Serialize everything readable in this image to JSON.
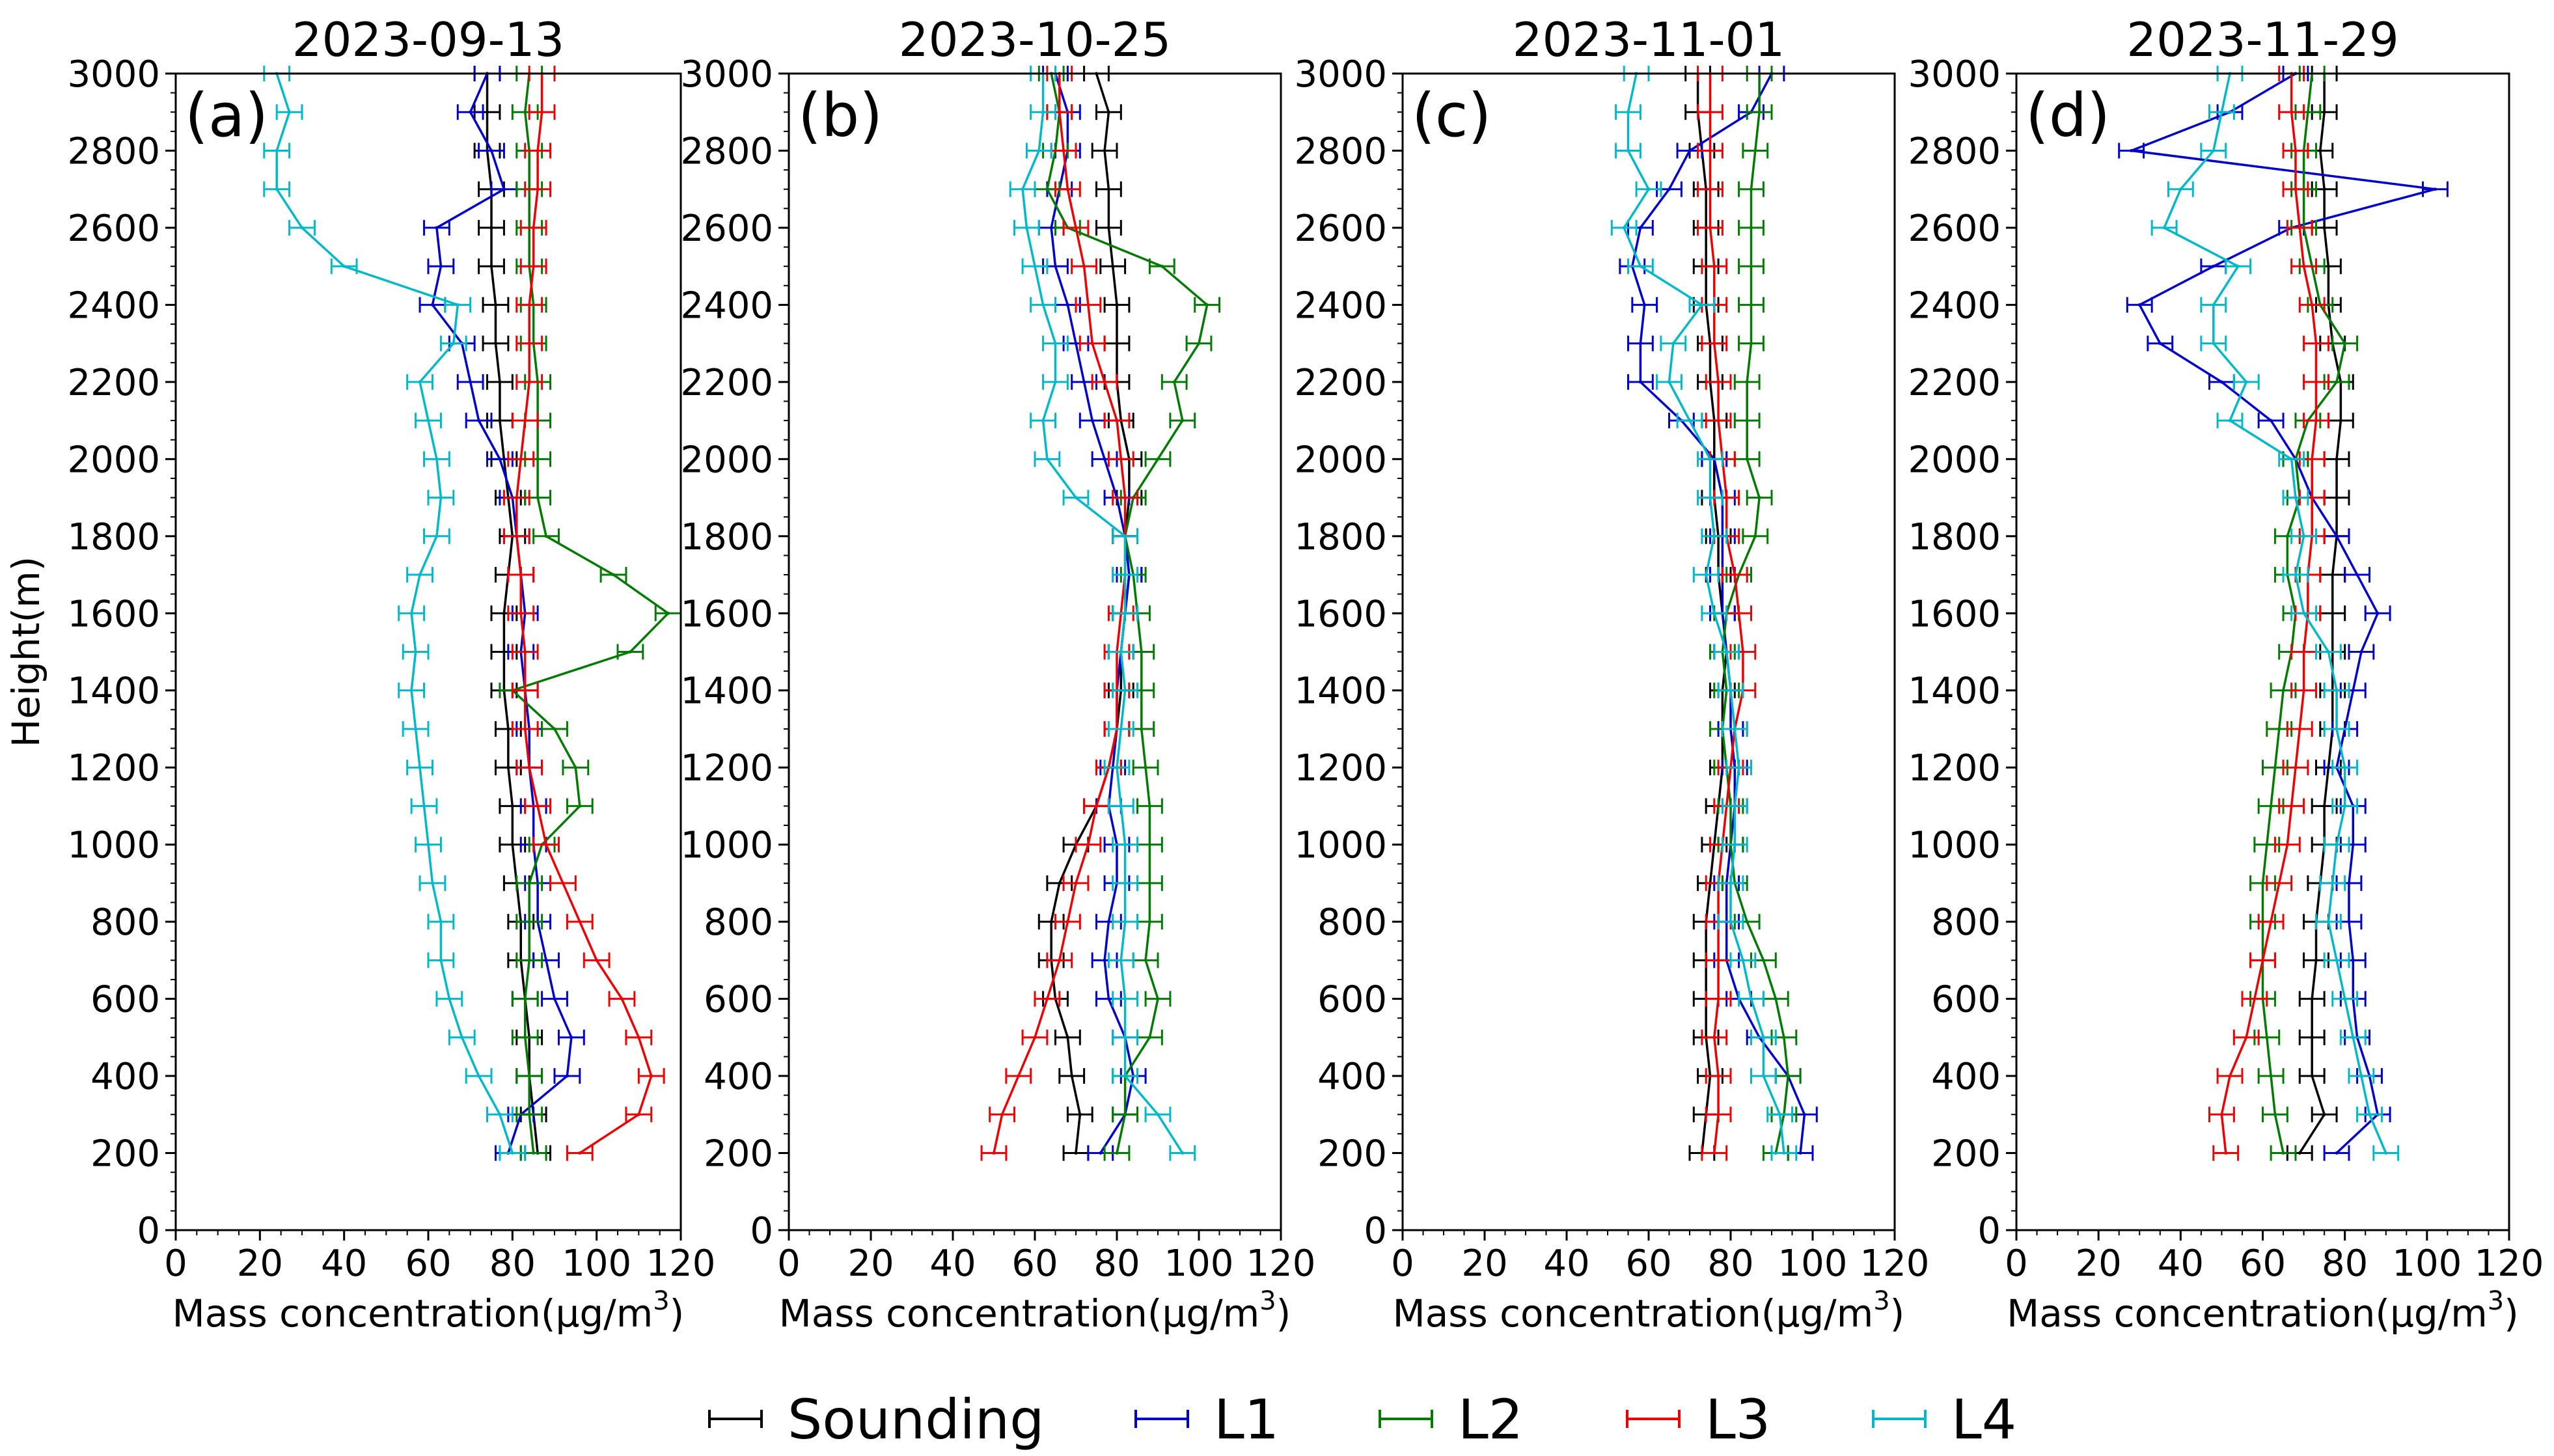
{
  "colors": {
    "Sounding": "#000000",
    "L1": "#0000cc",
    "L2": "#007a00",
    "L3": "#ee0000",
    "L4": "#00b8c8"
  },
  "legend": [
    "Sounding",
    "L1",
    "L2",
    "L3",
    "L4"
  ],
  "chart_data": [
    {
      "type": "line",
      "title": "2023-09-13",
      "panel": "(a)",
      "xlabel": "Mass concentration(μg/m³)",
      "ylabel": "Height(m)",
      "xlim": [
        0,
        120
      ],
      "ylim": [
        0,
        3000
      ],
      "xticks": [
        0,
        20,
        40,
        60,
        80,
        100,
        120
      ],
      "yticks": [
        0,
        200,
        400,
        600,
        800,
        1000,
        1200,
        1400,
        1600,
        1800,
        2000,
        2200,
        2400,
        2600,
        2800,
        3000
      ],
      "heights": [
        200,
        300,
        400,
        500,
        600,
        700,
        800,
        900,
        1000,
        1100,
        1200,
        1300,
        1400,
        1500,
        1600,
        1700,
        1800,
        1900,
        2000,
        2100,
        2200,
        2300,
        2400,
        2500,
        2600,
        2700,
        2800,
        2900,
        3000
      ],
      "series": [
        {
          "name": "Sounding",
          "values": [
            86,
            85,
            84,
            84,
            83,
            82,
            82,
            81,
            80,
            80,
            79,
            79,
            78,
            78,
            78,
            79,
            80,
            79,
            78,
            77,
            77,
            76,
            76,
            75,
            75,
            75,
            74,
            74,
            74
          ]
        },
        {
          "name": "L1",
          "values": [
            79,
            82,
            93,
            94,
            90,
            88,
            86,
            86,
            85,
            85,
            84,
            84,
            83,
            82,
            83,
            82,
            81,
            80,
            77,
            72,
            70,
            68,
            61,
            63,
            62,
            78,
            75,
            70,
            74
          ]
        },
        {
          "name": "L2",
          "values": [
            85,
            84,
            84,
            83,
            83,
            84,
            84,
            84,
            87,
            96,
            95,
            90,
            80,
            108,
            117,
            104,
            88,
            86,
            86,
            86,
            86,
            85,
            85,
            84,
            84,
            84,
            84,
            83,
            84
          ]
        },
        {
          "name": "L3",
          "values": [
            96,
            110,
            113,
            110,
            106,
            100,
            96,
            92,
            88,
            86,
            84,
            83,
            83,
            83,
            82,
            82,
            81,
            81,
            82,
            83,
            84,
            84,
            84,
            85,
            85,
            86,
            86,
            87,
            87
          ]
        },
        {
          "name": "L4",
          "values": [
            80,
            77,
            72,
            68,
            65,
            63,
            63,
            61,
            60,
            59,
            58,
            57,
            56,
            57,
            56,
            58,
            62,
            63,
            62,
            60,
            58,
            66,
            67,
            40,
            30,
            24,
            24,
            27,
            24
          ]
        }
      ]
    },
    {
      "type": "line",
      "title": "2023-10-25",
      "panel": "(b)",
      "xlabel": "Mass concentration(μg/m³)",
      "xlim": [
        0,
        120
      ],
      "ylim": [
        0,
        3000
      ],
      "xticks": [
        0,
        20,
        40,
        60,
        80,
        100,
        120
      ],
      "yticks": [
        0,
        200,
        400,
        600,
        800,
        1000,
        1200,
        1400,
        1600,
        1800,
        2000,
        2200,
        2400,
        2600,
        2800,
        3000
      ],
      "heights": [
        200,
        300,
        400,
        500,
        600,
        700,
        800,
        900,
        1000,
        1100,
        1200,
        1300,
        1400,
        1500,
        1600,
        1700,
        1800,
        1900,
        2000,
        2100,
        2200,
        2300,
        2400,
        2500,
        2600,
        2700,
        2800,
        2900,
        3000
      ],
      "series": [
        {
          "name": "Sounding",
          "values": [
            70,
            71,
            69,
            68,
            65,
            64,
            64,
            66,
            70,
            75,
            78,
            80,
            81,
            81,
            82,
            83,
            82,
            83,
            83,
            81,
            80,
            80,
            80,
            79,
            78,
            78,
            77,
            78,
            75
          ]
        },
        {
          "name": "L1",
          "values": [
            76,
            82,
            84,
            82,
            78,
            77,
            78,
            80,
            80,
            78,
            79,
            80,
            80,
            81,
            82,
            83,
            82,
            80,
            77,
            74,
            72,
            70,
            68,
            65,
            64,
            66,
            68,
            68,
            65
          ]
        },
        {
          "name": "L2",
          "values": [
            80,
            82,
            82,
            88,
            90,
            87,
            88,
            88,
            88,
            88,
            87,
            86,
            86,
            86,
            85,
            84,
            82,
            84,
            90,
            96,
            94,
            100,
            102,
            91,
            68,
            63,
            65,
            66,
            64
          ]
        },
        {
          "name": "L3",
          "values": [
            50,
            52,
            56,
            60,
            63,
            66,
            68,
            70,
            73,
            75,
            78,
            80,
            80,
            80,
            81,
            82,
            82,
            82,
            81,
            80,
            77,
            74,
            73,
            72,
            70,
            68,
            67,
            66,
            66
          ]
        },
        {
          "name": "L4",
          "values": [
            96,
            90,
            82,
            82,
            82,
            81,
            82,
            82,
            82,
            81,
            80,
            81,
            82,
            81,
            82,
            82,
            82,
            70,
            63,
            62,
            65,
            65,
            62,
            60,
            58,
            57,
            61,
            62,
            62
          ]
        }
      ]
    },
    {
      "type": "line",
      "title": "2023-11-01",
      "panel": "(c)",
      "xlabel": "Mass concentration(μg/m³)",
      "xlim": [
        0,
        120
      ],
      "ylim": [
        0,
        3000
      ],
      "xticks": [
        0,
        20,
        40,
        60,
        80,
        100,
        120
      ],
      "yticks": [
        0,
        200,
        400,
        600,
        800,
        1000,
        1200,
        1400,
        1600,
        1800,
        2000,
        2200,
        2400,
        2600,
        2800,
        3000
      ],
      "heights": [
        200,
        300,
        400,
        500,
        600,
        700,
        800,
        900,
        1000,
        1100,
        1200,
        1300,
        1400,
        1500,
        1600,
        1700,
        1800,
        1900,
        2000,
        2100,
        2200,
        2300,
        2400,
        2500,
        2600,
        2700,
        2800,
        2900,
        3000
      ],
      "series": [
        {
          "name": "Sounding",
          "values": [
            73,
            74,
            75,
            74,
            74,
            74,
            74,
            75,
            76,
            77,
            78,
            78,
            78,
            79,
            78,
            77,
            77,
            76,
            76,
            76,
            75,
            75,
            74,
            74,
            74,
            74,
            73,
            72,
            72
          ]
        },
        {
          "name": "L1",
          "values": [
            97,
            98,
            94,
            87,
            82,
            79,
            79,
            79,
            80,
            81,
            81,
            80,
            80,
            79,
            78,
            78,
            78,
            78,
            76,
            68,
            58,
            58,
            59,
            56,
            58,
            65,
            70,
            85,
            90
          ]
        },
        {
          "name": "L2",
          "values": [
            91,
            93,
            94,
            93,
            91,
            88,
            84,
            81,
            80,
            80,
            79,
            78,
            79,
            78,
            79,
            82,
            86,
            87,
            84,
            84,
            84,
            85,
            85,
            85,
            85,
            85,
            86,
            87,
            87
          ]
        },
        {
          "name": "L3",
          "values": [
            76,
            77,
            77,
            76,
            77,
            77,
            77,
            77,
            78,
            79,
            80,
            81,
            83,
            83,
            82,
            81,
            79,
            79,
            78,
            77,
            77,
            76,
            76,
            76,
            75,
            75,
            75,
            75,
            75
          ]
        },
        {
          "name": "L4",
          "values": [
            93,
            92,
            88,
            88,
            85,
            83,
            80,
            80,
            81,
            81,
            82,
            81,
            80,
            79,
            76,
            74,
            76,
            75,
            75,
            70,
            65,
            66,
            73,
            58,
            54,
            60,
            55,
            55,
            57
          ]
        }
      ]
    },
    {
      "type": "line",
      "title": "2023-11-29",
      "panel": "(d)",
      "xlabel": "Mass concentration(μg/m³)",
      "xlim": [
        0,
        120
      ],
      "ylim": [
        0,
        3000
      ],
      "xticks": [
        0,
        20,
        40,
        60,
        80,
        100,
        120
      ],
      "yticks": [
        0,
        200,
        400,
        600,
        800,
        1000,
        1200,
        1400,
        1600,
        1800,
        2000,
        2200,
        2400,
        2600,
        2800,
        3000
      ],
      "heights": [
        200,
        300,
        400,
        500,
        600,
        700,
        800,
        900,
        1000,
        1100,
        1200,
        1300,
        1400,
        1500,
        1600,
        1700,
        1800,
        1900,
        2000,
        2100,
        2200,
        2300,
        2400,
        2500,
        2600,
        2700,
        2800,
        2900,
        3000
      ],
      "series": [
        {
          "name": "Sounding",
          "values": [
            69,
            75,
            72,
            72,
            72,
            73,
            73,
            74,
            75,
            75,
            76,
            77,
            77,
            77,
            77,
            77,
            78,
            78,
            78,
            79,
            79,
            77,
            76,
            76,
            75,
            75,
            74,
            75,
            75
          ]
        },
        {
          "name": "L1",
          "values": [
            78,
            88,
            86,
            83,
            82,
            82,
            81,
            81,
            82,
            82,
            78,
            80,
            82,
            84,
            88,
            83,
            78,
            72,
            68,
            62,
            50,
            35,
            30,
            48,
            67,
            102,
            28,
            52,
            68
          ]
        },
        {
          "name": "L2",
          "values": [
            65,
            63,
            62,
            61,
            60,
            60,
            60,
            60,
            61,
            62,
            63,
            64,
            65,
            67,
            68,
            66,
            66,
            69,
            68,
            71,
            78,
            80,
            74,
            72,
            70,
            70,
            70,
            71,
            72
          ]
        },
        {
          "name": "L3",
          "values": [
            51,
            50,
            52,
            56,
            58,
            60,
            62,
            64,
            66,
            67,
            68,
            69,
            70,
            70,
            71,
            71,
            72,
            72,
            72,
            73,
            73,
            73,
            72,
            70,
            69,
            68,
            68,
            67,
            67
          ]
        },
        {
          "name": "L4",
          "values": [
            90,
            86,
            84,
            82,
            80,
            78,
            76,
            77,
            78,
            80,
            80,
            78,
            78,
            76,
            70,
            68,
            70,
            68,
            67,
            52,
            56,
            48,
            48,
            54,
            36,
            40,
            48,
            50,
            52
          ]
        }
      ]
    }
  ]
}
